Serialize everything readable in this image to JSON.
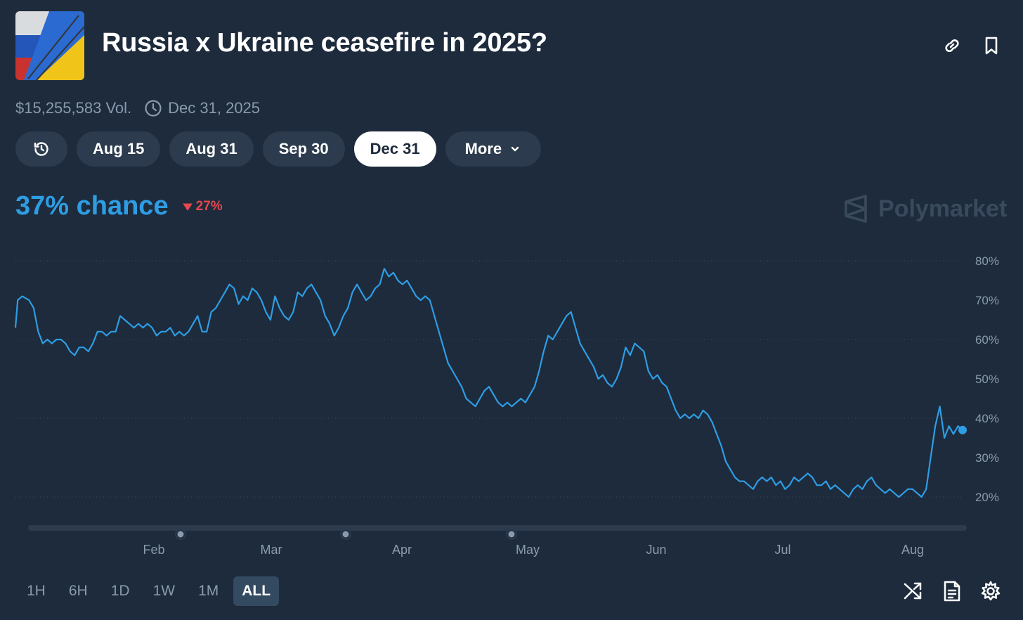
{
  "market": {
    "title": "Russia x Ukraine ceasefire in 2025?",
    "volume": "$15,255,583 Vol.",
    "end_date": "Dec 31, 2025"
  },
  "tabs": [
    {
      "label": "",
      "icon": "history-icon"
    },
    {
      "label": "Aug 15"
    },
    {
      "label": "Aug 31"
    },
    {
      "label": "Sep 30"
    },
    {
      "label": "Dec 31",
      "active": true
    },
    {
      "label": "More",
      "icon": "chevron-down-icon"
    }
  ],
  "chance": {
    "value": "37% chance",
    "delta": "27%"
  },
  "brand": "Polymarket",
  "ranges": [
    "1H",
    "6H",
    "1D",
    "1W",
    "1M",
    "ALL"
  ],
  "active_range": "ALL",
  "colors": {
    "background": "#1d2b3c",
    "accent": "#2e9de4",
    "negative": "#e5484d",
    "active_tab": "#ffffff"
  },
  "icons": [
    "link-icon",
    "bookmark-icon",
    "clock-icon",
    "shuffle-icon",
    "document-icon",
    "gear-icon"
  ],
  "chart_data": {
    "type": "line",
    "title": "",
    "x_tick_labels": [
      "Feb",
      "Mar",
      "Apr",
      "May",
      "Jun",
      "Jul",
      "Aug"
    ],
    "y_tick_labels": [
      "20%",
      "30%",
      "40%",
      "50%",
      "60%",
      "70%",
      "80%"
    ],
    "ylim": [
      20,
      80
    ],
    "grid": "horizontal dotted",
    "series": [
      {
        "values": [
          [
            0,
            63
          ],
          [
            2,
            70
          ],
          [
            6,
            71
          ],
          [
            12,
            70
          ],
          [
            16,
            68
          ],
          [
            20,
            62
          ],
          [
            24,
            59
          ],
          [
            28,
            60
          ],
          [
            32,
            59
          ],
          [
            36,
            60
          ],
          [
            40,
            60
          ],
          [
            44,
            59
          ],
          [
            48,
            57
          ],
          [
            52,
            56
          ],
          [
            56,
            58
          ],
          [
            60,
            58
          ],
          [
            64,
            57
          ],
          [
            68,
            59
          ],
          [
            72,
            62
          ],
          [
            76,
            62
          ],
          [
            80,
            61
          ],
          [
            84,
            62
          ],
          [
            88,
            62
          ],
          [
            92,
            66
          ],
          [
            96,
            65
          ],
          [
            100,
            64
          ],
          [
            104,
            63
          ],
          [
            108,
            64
          ],
          [
            112,
            63
          ],
          [
            116,
            64
          ],
          [
            120,
            63
          ],
          [
            124,
            61
          ],
          [
            128,
            62
          ],
          [
            132,
            62
          ],
          [
            136,
            63
          ],
          [
            140,
            61
          ],
          [
            144,
            62
          ],
          [
            148,
            61
          ],
          [
            152,
            62
          ],
          [
            156,
            64
          ],
          [
            160,
            66
          ],
          [
            164,
            62
          ],
          [
            168,
            62
          ],
          [
            172,
            67
          ],
          [
            176,
            68
          ],
          [
            180,
            70
          ],
          [
            184,
            72
          ],
          [
            188,
            74
          ],
          [
            192,
            73
          ],
          [
            196,
            69
          ],
          [
            200,
            71
          ],
          [
            204,
            70
          ],
          [
            208,
            73
          ],
          [
            212,
            72
          ],
          [
            216,
            70
          ],
          [
            220,
            67
          ],
          [
            224,
            65
          ],
          [
            228,
            71
          ],
          [
            232,
            68
          ],
          [
            236,
            66
          ],
          [
            240,
            65
          ],
          [
            244,
            67
          ],
          [
            248,
            72
          ],
          [
            252,
            71
          ],
          [
            256,
            73
          ],
          [
            260,
            74
          ],
          [
            264,
            72
          ],
          [
            268,
            70
          ],
          [
            272,
            66
          ],
          [
            276,
            64
          ],
          [
            280,
            61
          ],
          [
            284,
            63
          ],
          [
            288,
            66
          ],
          [
            292,
            68
          ],
          [
            296,
            72
          ],
          [
            300,
            74
          ],
          [
            304,
            72
          ],
          [
            308,
            70
          ],
          [
            312,
            71
          ],
          [
            316,
            73
          ],
          [
            320,
            74
          ],
          [
            324,
            78
          ],
          [
            328,
            76
          ],
          [
            332,
            77
          ],
          [
            336,
            75
          ],
          [
            340,
            74
          ],
          [
            344,
            75
          ],
          [
            348,
            73
          ],
          [
            352,
            71
          ],
          [
            356,
            70
          ],
          [
            360,
            71
          ],
          [
            364,
            70
          ],
          [
            368,
            66
          ],
          [
            372,
            62
          ],
          [
            376,
            58
          ],
          [
            380,
            54
          ],
          [
            384,
            52
          ],
          [
            388,
            50
          ],
          [
            392,
            48
          ],
          [
            396,
            45
          ],
          [
            400,
            44
          ],
          [
            404,
            43
          ],
          [
            408,
            45
          ],
          [
            412,
            47
          ],
          [
            416,
            48
          ],
          [
            420,
            46
          ],
          [
            424,
            44
          ],
          [
            428,
            43
          ],
          [
            432,
            44
          ],
          [
            436,
            43
          ],
          [
            440,
            44
          ],
          [
            444,
            45
          ],
          [
            448,
            44
          ],
          [
            452,
            46
          ],
          [
            456,
            48
          ],
          [
            460,
            52
          ],
          [
            464,
            57
          ],
          [
            468,
            61
          ],
          [
            472,
            60
          ],
          [
            476,
            62
          ],
          [
            480,
            64
          ],
          [
            484,
            66
          ],
          [
            488,
            67
          ],
          [
            492,
            63
          ],
          [
            496,
            59
          ],
          [
            500,
            57
          ],
          [
            504,
            55
          ],
          [
            508,
            53
          ],
          [
            512,
            50
          ],
          [
            516,
            51
          ],
          [
            520,
            49
          ],
          [
            524,
            48
          ],
          [
            528,
            50
          ],
          [
            532,
            53
          ],
          [
            536,
            58
          ],
          [
            540,
            56
          ],
          [
            544,
            59
          ],
          [
            548,
            58
          ],
          [
            552,
            57
          ],
          [
            556,
            52
          ],
          [
            560,
            50
          ],
          [
            564,
            51
          ],
          [
            568,
            49
          ],
          [
            572,
            48
          ],
          [
            576,
            45
          ],
          [
            580,
            42
          ],
          [
            584,
            40
          ],
          [
            588,
            41
          ],
          [
            592,
            40
          ],
          [
            596,
            41
          ],
          [
            600,
            40
          ],
          [
            604,
            42
          ],
          [
            608,
            41
          ],
          [
            612,
            39
          ],
          [
            616,
            36
          ],
          [
            620,
            33
          ],
          [
            624,
            29
          ],
          [
            628,
            27
          ],
          [
            632,
            25
          ],
          [
            636,
            24
          ],
          [
            640,
            24
          ],
          [
            644,
            23
          ],
          [
            648,
            22
          ],
          [
            652,
            24
          ],
          [
            656,
            25
          ],
          [
            660,
            24
          ],
          [
            664,
            25
          ],
          [
            668,
            23
          ],
          [
            672,
            24
          ],
          [
            676,
            22
          ],
          [
            680,
            23
          ],
          [
            684,
            25
          ],
          [
            688,
            24
          ],
          [
            692,
            25
          ],
          [
            696,
            26
          ],
          [
            700,
            25
          ],
          [
            704,
            23
          ],
          [
            708,
            23
          ],
          [
            712,
            24
          ],
          [
            716,
            22
          ],
          [
            720,
            23
          ],
          [
            724,
            22
          ],
          [
            728,
            21
          ],
          [
            732,
            20
          ],
          [
            736,
            22
          ],
          [
            740,
            23
          ],
          [
            744,
            22
          ],
          [
            748,
            24
          ],
          [
            752,
            25
          ],
          [
            756,
            23
          ],
          [
            760,
            22
          ],
          [
            764,
            21
          ],
          [
            768,
            22
          ],
          [
            772,
            21
          ],
          [
            776,
            20
          ],
          [
            780,
            21
          ],
          [
            784,
            22
          ],
          [
            788,
            22
          ],
          [
            792,
            21
          ],
          [
            796,
            20
          ],
          [
            800,
            22
          ],
          [
            804,
            30
          ],
          [
            808,
            38
          ],
          [
            812,
            43
          ],
          [
            816,
            35
          ],
          [
            820,
            38
          ],
          [
            824,
            36
          ],
          [
            828,
            38
          ],
          [
            832,
            37
          ]
        ]
      }
    ]
  }
}
